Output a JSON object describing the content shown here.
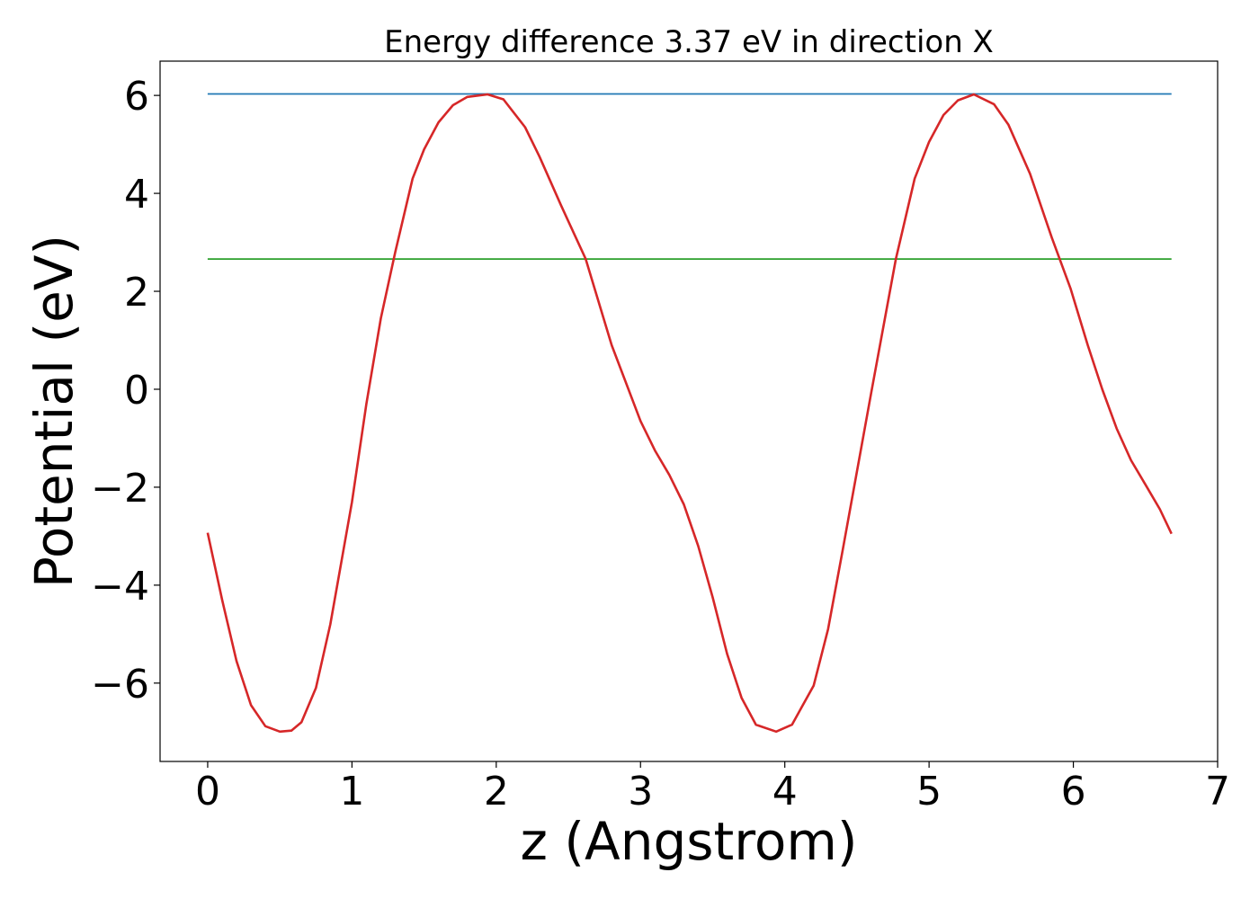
{
  "chart_data": {
    "type": "line",
    "title": "Energy difference 3.37 eV in direction X",
    "xlabel": "z (Angstrom)",
    "ylabel": "Potential (eV)",
    "xlim": [
      -0.33,
      7.0
    ],
    "ylim": [
      -7.6,
      6.7
    ],
    "xticks": [
      0,
      1,
      2,
      3,
      4,
      5,
      6,
      7
    ],
    "xtick_labels": [
      "0",
      "1",
      "2",
      "3",
      "4",
      "5",
      "6",
      "7"
    ],
    "yticks": [
      -6,
      -4,
      -2,
      0,
      2,
      4,
      6
    ],
    "ytick_labels": [
      "−6",
      "−4",
      "−2",
      "0",
      "2",
      "4",
      "6"
    ],
    "grid": false,
    "series": [
      {
        "color": "#1f77b4",
        "x": [
          0.0,
          6.68
        ],
        "y": [
          6.03,
          6.03
        ]
      },
      {
        "color": "#2ca02c",
        "x": [
          0.0,
          6.68
        ],
        "y": [
          2.66,
          2.66
        ]
      },
      {
        "color": "#d62728",
        "x": [
          0.0,
          0.1,
          0.2,
          0.3,
          0.4,
          0.5,
          0.58,
          0.65,
          0.75,
          0.85,
          1.0,
          1.1,
          1.2,
          1.3,
          1.42,
          1.5,
          1.6,
          1.7,
          1.8,
          1.94,
          2.05,
          2.2,
          2.3,
          2.45,
          2.62,
          2.8,
          3.0,
          3.1,
          3.2,
          3.3,
          3.4,
          3.5,
          3.6,
          3.7,
          3.8,
          3.94,
          4.05,
          4.2,
          4.3,
          4.4,
          4.6,
          4.77,
          4.9,
          5.0,
          5.1,
          5.2,
          5.31,
          5.45,
          5.55,
          5.7,
          5.85,
          5.98,
          6.1,
          6.2,
          6.3,
          6.4,
          6.5,
          6.6,
          6.68
        ],
        "y": [
          -2.93,
          -4.3,
          -5.55,
          -6.45,
          -6.88,
          -6.99,
          -6.97,
          -6.8,
          -6.1,
          -4.8,
          -2.3,
          -0.3,
          1.45,
          2.8,
          4.3,
          4.9,
          5.45,
          5.8,
          5.97,
          6.02,
          5.92,
          5.35,
          4.75,
          3.75,
          2.66,
          0.9,
          -0.65,
          -1.25,
          -1.75,
          -2.35,
          -3.2,
          -4.25,
          -5.4,
          -6.3,
          -6.85,
          -6.99,
          -6.85,
          -6.05,
          -4.9,
          -3.3,
          -0.05,
          2.66,
          4.3,
          5.05,
          5.6,
          5.9,
          6.02,
          5.82,
          5.4,
          4.4,
          3.1,
          2.06,
          0.9,
          0.0,
          -0.8,
          -1.45,
          -1.95,
          -2.45,
          -2.95
        ]
      }
    ]
  }
}
